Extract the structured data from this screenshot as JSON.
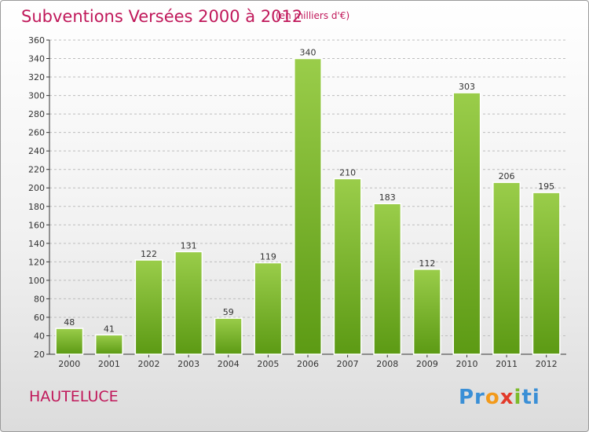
{
  "header": {
    "title": "Subventions Versées 2000 à 2012",
    "unit": "(en milliers d'€)"
  },
  "footer": {
    "commune": "HAUTELUCE",
    "logo": [
      "Pr",
      "o",
      "x",
      "i",
      "ti"
    ]
  },
  "colors": {
    "title": "#c0185a",
    "bar_top": "#9acd4a",
    "bar_bottom": "#5c9a14",
    "grid": "#bdbdbd"
  },
  "chart_data": {
    "type": "bar",
    "categories": [
      "2000",
      "2001",
      "2002",
      "2003",
      "2004",
      "2005",
      "2006",
      "2007",
      "2008",
      "2009",
      "2010",
      "2011",
      "2012"
    ],
    "values": [
      48,
      41,
      122,
      131,
      59,
      119,
      340,
      210,
      183,
      112,
      303,
      206,
      195
    ],
    "ylim": [
      20,
      360
    ],
    "yticks": [
      20,
      40,
      60,
      80,
      100,
      120,
      140,
      160,
      180,
      200,
      220,
      240,
      260,
      280,
      300,
      320,
      340,
      360
    ],
    "grid": true,
    "data_labels": true
  }
}
